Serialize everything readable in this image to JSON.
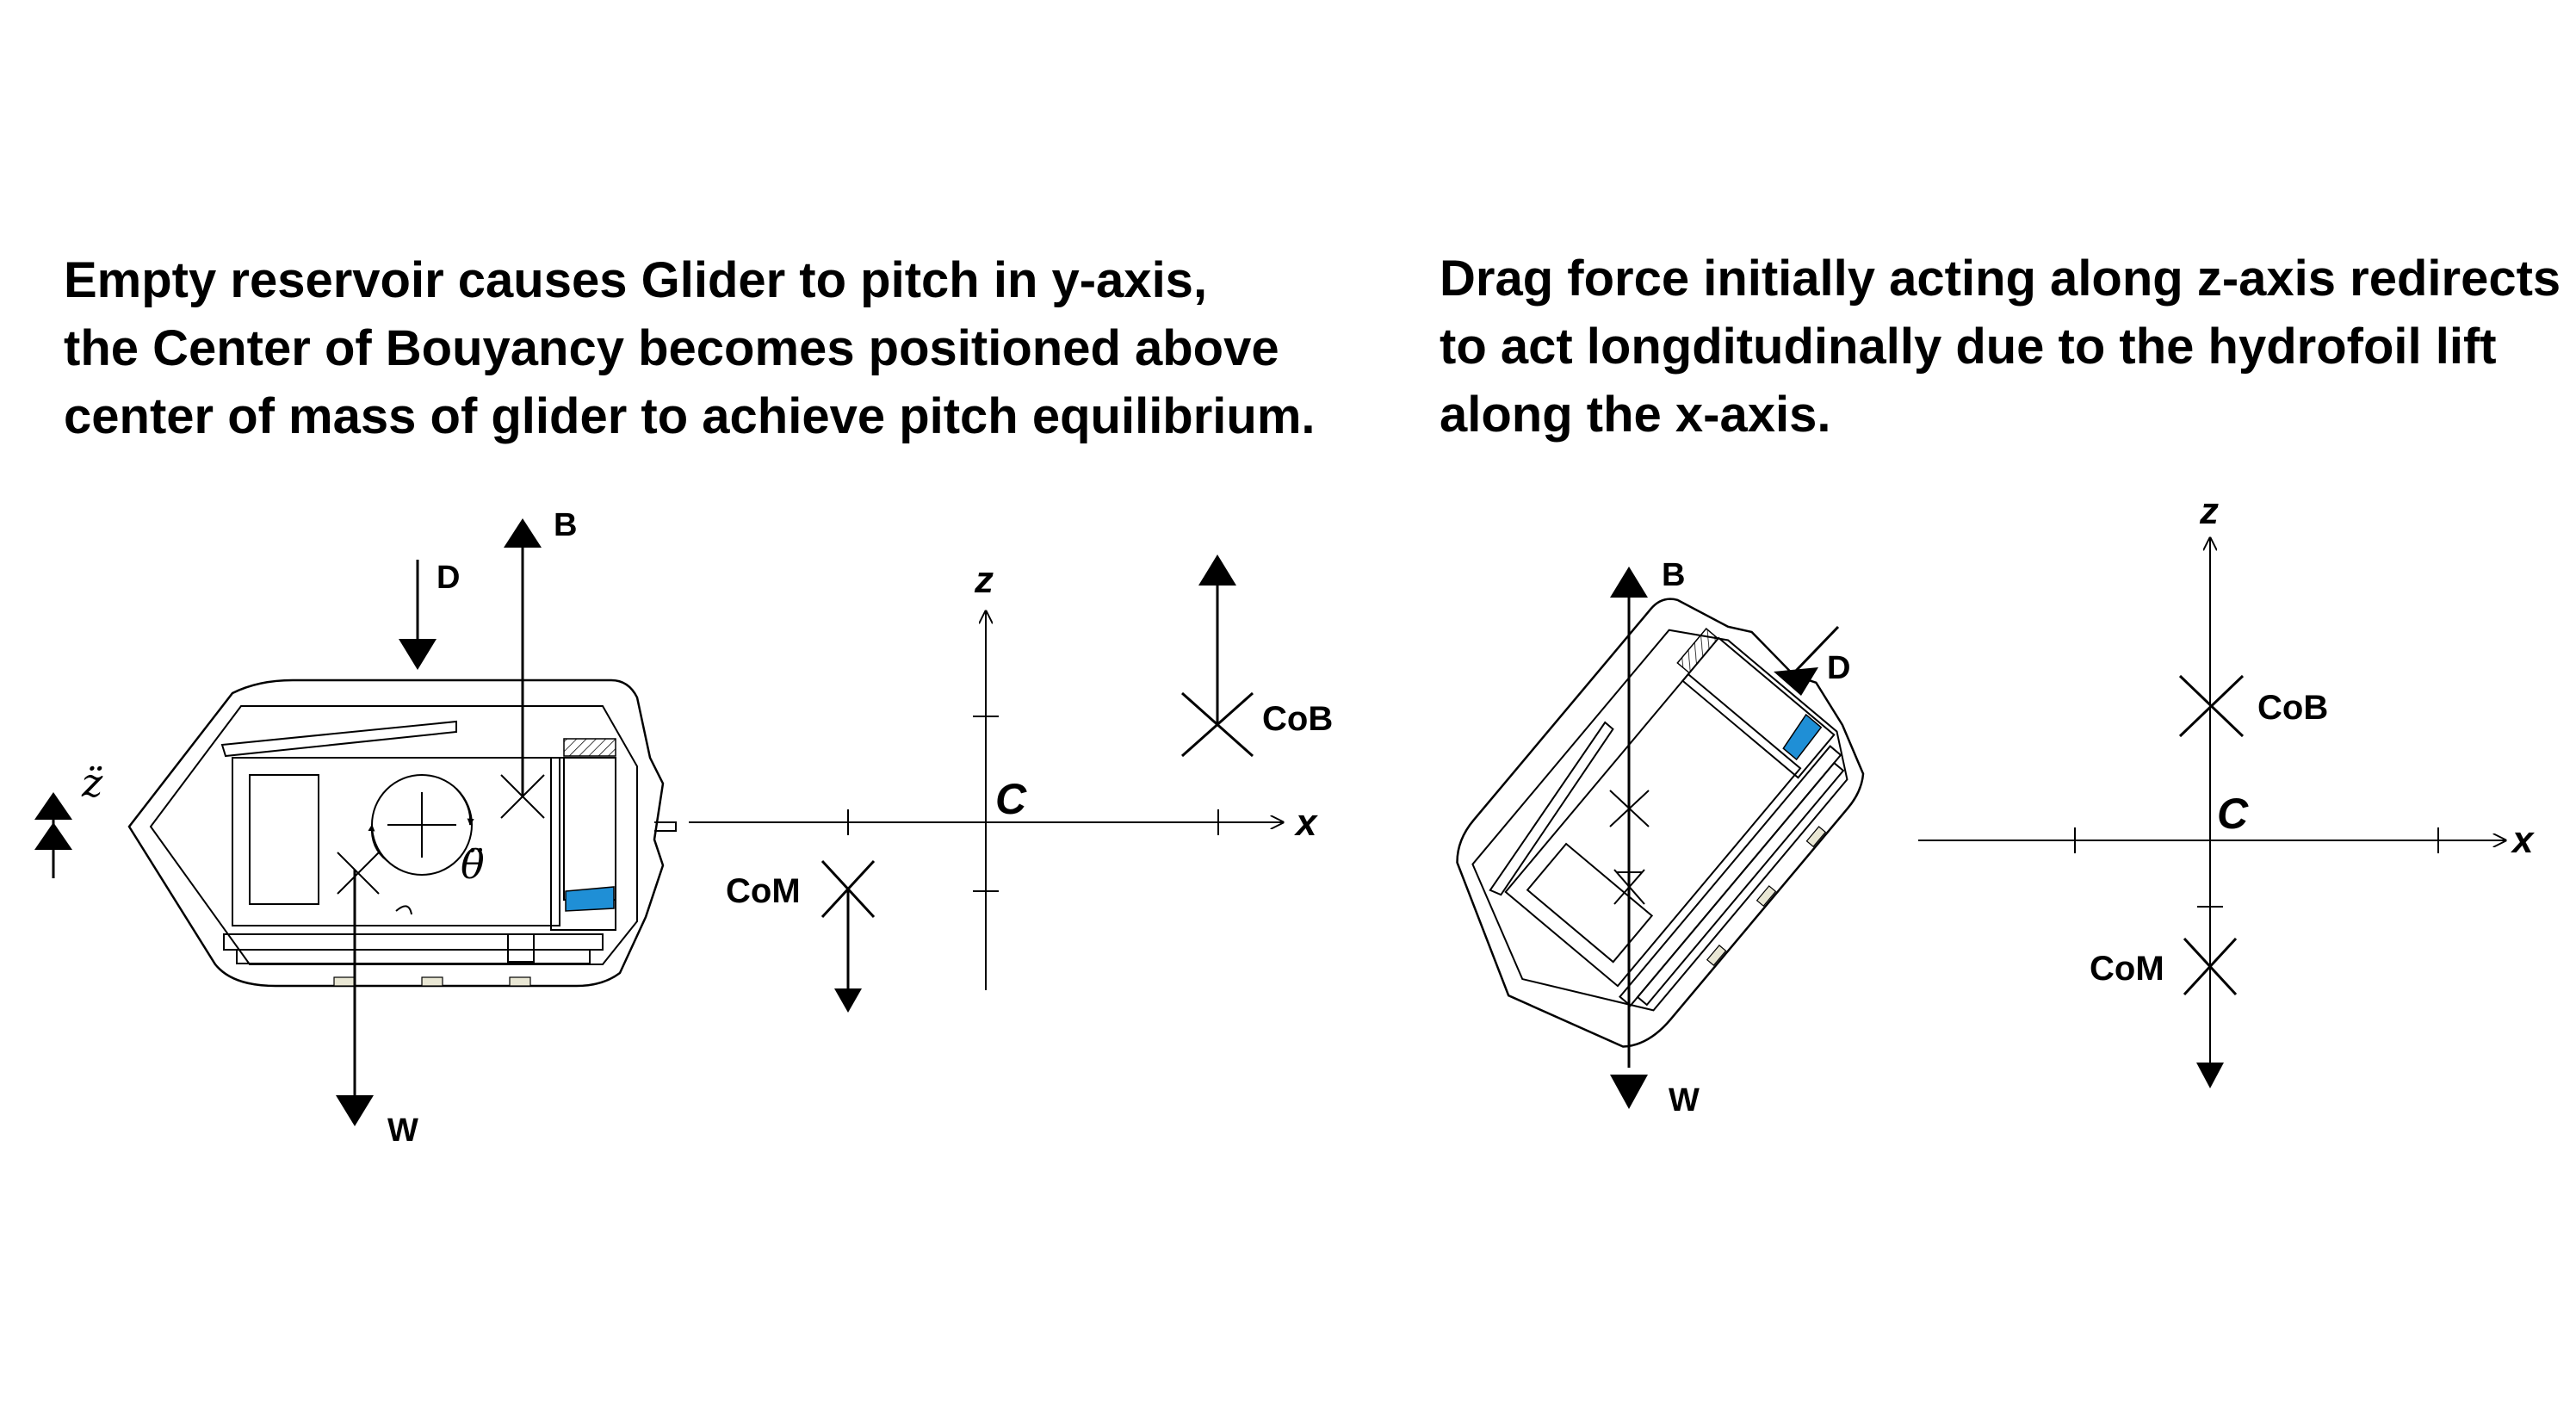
{
  "left_panel": {
    "caption_lines": [
      "Empty reservoir causes Glider to pitch in y-axis,",
      "the Center of Bouyancy becomes positioned above",
      "center of mass of glider to achieve pitch equilibrium."
    ],
    "force_labels": {
      "buoyancy": "B",
      "drag": "D",
      "weight": "W"
    },
    "accel_label": "z̈",
    "pitch_accel_label": "θ̈",
    "com_label": "CoM",
    "cob_label": "CoB",
    "axes": {
      "x": "x",
      "z": "z",
      "origin": "C"
    }
  },
  "right_panel": {
    "caption_lines": [
      "Drag force initially acting along z-axis redirects",
      "to act longditudinally due to the hydrofoil lift",
      "along the x-axis."
    ],
    "force_labels": {
      "buoyancy": "B",
      "drag": "D",
      "weight": "W"
    },
    "com_label": "CoM",
    "cob_label": "CoB",
    "axes": {
      "x": "x",
      "z": "z",
      "origin": "C"
    }
  },
  "colors": {
    "water": "#1f8fd6",
    "ink": "#000000",
    "background": "#ffffff"
  }
}
